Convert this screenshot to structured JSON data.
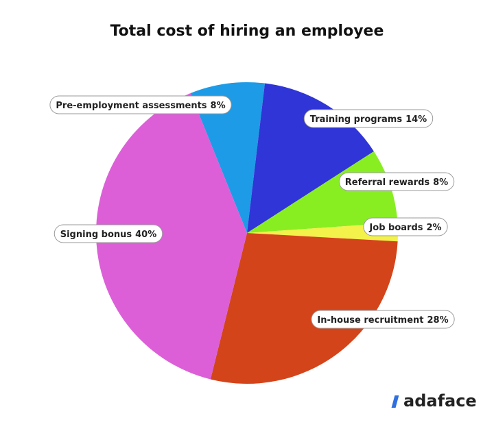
{
  "chart_data": {
    "type": "pie",
    "title": "Total cost of hiring an employee",
    "categories": [
      "Pre-employment assessments",
      "Training programs",
      "Referral rewards",
      "Job boards",
      "In-house recruitment",
      "Signing bonus"
    ],
    "values": [
      8,
      14,
      8,
      2,
      28,
      40
    ],
    "value_labels": [
      "8%",
      "14%",
      "8%",
      "2%",
      "28%",
      "40%"
    ],
    "colors": [
      "#1e9be6",
      "#2f35d6",
      "#88ee22",
      "#f2f24a",
      "#d4441a",
      "#dc5fd8"
    ]
  },
  "logo": "adaface"
}
